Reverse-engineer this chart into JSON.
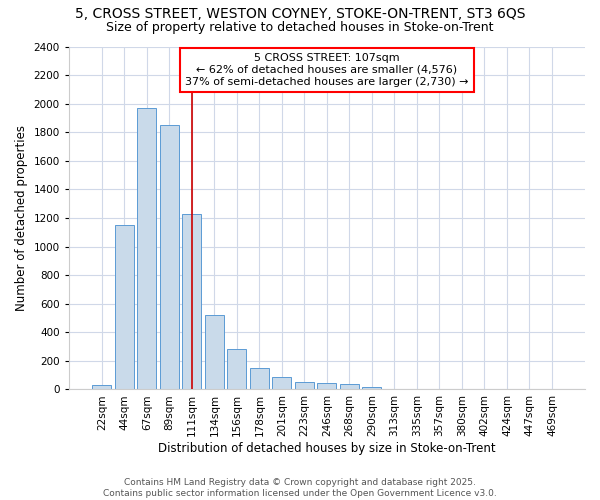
{
  "title": "5, CROSS STREET, WESTON COYNEY, STOKE-ON-TRENT, ST3 6QS",
  "subtitle": "Size of property relative to detached houses in Stoke-on-Trent",
  "xlabel": "Distribution of detached houses by size in Stoke-on-Trent",
  "ylabel": "Number of detached properties",
  "footer_line1": "Contains HM Land Registry data © Crown copyright and database right 2025.",
  "footer_line2": "Contains public sector information licensed under the Open Government Licence v3.0.",
  "categories": [
    "22sqm",
    "44sqm",
    "67sqm",
    "89sqm",
    "111sqm",
    "134sqm",
    "156sqm",
    "178sqm",
    "201sqm",
    "223sqm",
    "246sqm",
    "268sqm",
    "290sqm",
    "313sqm",
    "335sqm",
    "357sqm",
    "380sqm",
    "402sqm",
    "424sqm",
    "447sqm",
    "469sqm"
  ],
  "values": [
    30,
    1150,
    1970,
    1850,
    1230,
    520,
    280,
    150,
    90,
    50,
    45,
    40,
    15,
    5,
    5,
    2,
    2,
    2,
    2,
    1,
    1
  ],
  "bar_color": "#c9daea",
  "bar_edge_color": "#5b9bd5",
  "vline_x_index": 4,
  "vline_color": "#cc0000",
  "annotation_line1": "5 CROSS STREET: 107sqm",
  "annotation_line2": "← 62% of detached houses are smaller (4,576)",
  "annotation_line3": "37% of semi-detached houses are larger (2,730) →",
  "ylim": [
    0,
    2400
  ],
  "yticks": [
    0,
    200,
    400,
    600,
    800,
    1000,
    1200,
    1400,
    1600,
    1800,
    2000,
    2200,
    2400
  ],
  "background_color": "#ffffff",
  "plot_bg_color": "#ffffff",
  "grid_color": "#d0d8e8",
  "title_fontsize": 10,
  "subtitle_fontsize": 9,
  "label_fontsize": 8.5,
  "tick_fontsize": 7.5,
  "annot_fontsize": 8,
  "footer_fontsize": 6.5
}
